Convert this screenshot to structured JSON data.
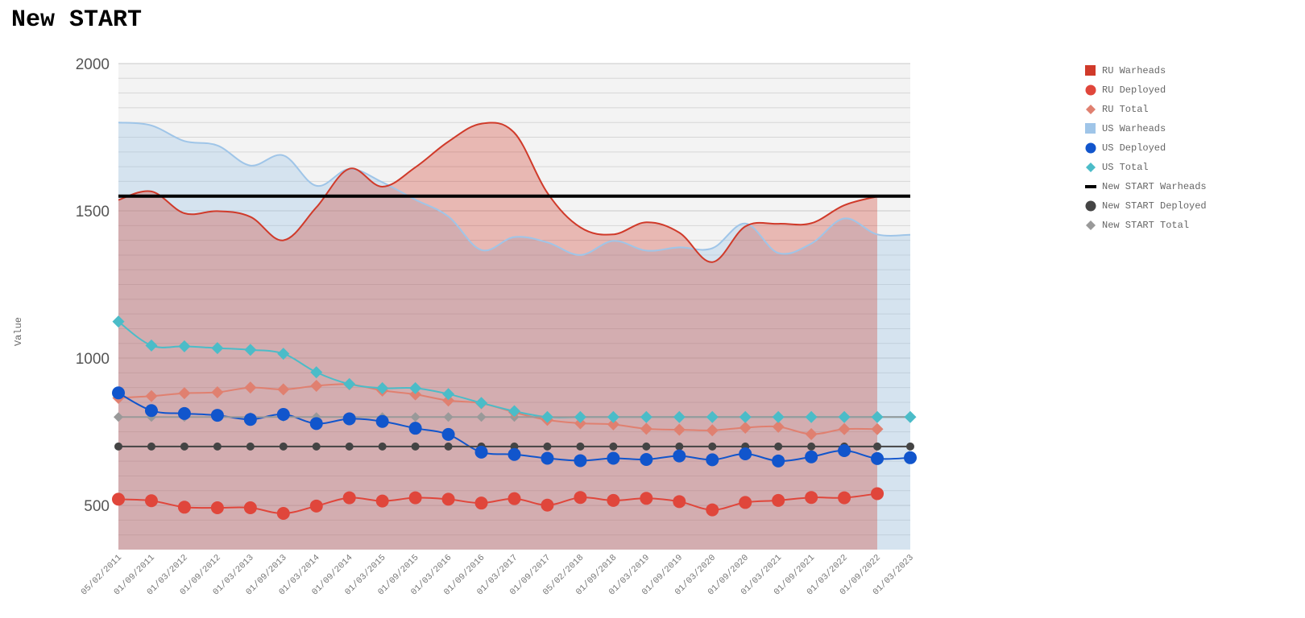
{
  "chart_data": {
    "type": "line",
    "title": "New START",
    "ylabel": "Value",
    "xlabel": "",
    "ylim": [
      350,
      2000
    ],
    "yticks": [
      500,
      1000,
      1500,
      2000
    ],
    "grid": true,
    "legend_position": "top-right",
    "categories": [
      "05/02/2011",
      "01/09/2011",
      "01/03/2012",
      "01/09/2012",
      "01/03/2013",
      "01/09/2013",
      "01/03/2014",
      "01/09/2014",
      "01/03/2015",
      "01/09/2015",
      "01/03/2016",
      "01/09/2016",
      "01/03/2017",
      "01/09/2017",
      "05/02/2018",
      "01/09/2018",
      "01/03/2019",
      "01/09/2019",
      "01/03/2020",
      "01/09/2020",
      "01/03/2021",
      "01/09/2021",
      "01/03/2022",
      "01/09/2022",
      "01/03/2023"
    ],
    "series": [
      {
        "name": "RU Warheads",
        "kind": "area",
        "color": "#d03a2a",
        "values": [
          1537,
          1566,
          1492,
          1499,
          1480,
          1400,
          1512,
          1643,
          1582,
          1648,
          1735,
          1796,
          1765,
          1561,
          1444,
          1420,
          1461,
          1426,
          1326,
          1447,
          1456,
          1458,
          1519,
          1549,
          null
        ]
      },
      {
        "name": "RU Deployed",
        "kind": "circle",
        "color": "#e0463b",
        "values": [
          521,
          516,
          494,
          492,
          492,
          473,
          498,
          526,
          515,
          526,
          521,
          508,
          523,
          501,
          527,
          517,
          524,
          513,
          485,
          510,
          517,
          527,
          526,
          540,
          null
        ]
      },
      {
        "name": "RU Total",
        "kind": "diamond",
        "color": "#e08070",
        "values": [
          865,
          871,
          881,
          884,
          900,
          894,
          906,
          911,
          890,
          877,
          856,
          847,
          816,
          790,
          779,
          775,
          760,
          757,
          755,
          764,
          767,
          742,
          759,
          759,
          null
        ]
      },
      {
        "name": "US Warheads",
        "kind": "area",
        "color": "#9fc5e8",
        "values": [
          1800,
          1790,
          1737,
          1722,
          1654,
          1688,
          1585,
          1642,
          1597,
          1538,
          1481,
          1367,
          1411,
          1393,
          1350,
          1398,
          1365,
          1376,
          1373,
          1457,
          1357,
          1389,
          1474,
          1420,
          1419
        ]
      },
      {
        "name": "US Deployed",
        "kind": "circle",
        "color": "#1155cc",
        "values": [
          882,
          822,
          812,
          806,
          792,
          809,
          778,
          794,
          785,
          762,
          741,
          681,
          673,
          660,
          652,
          660,
          656,
          668,
          655,
          675,
          651,
          665,
          686,
          659,
          662
        ]
      },
      {
        "name": "US Total",
        "kind": "diamond",
        "color": "#4bbcc8",
        "values": [
          1124,
          1043,
          1040,
          1034,
          1028,
          1015,
          952,
          912,
          898,
          898,
          878,
          848,
          820,
          800,
          800,
          800,
          800,
          800,
          800,
          800,
          800,
          800,
          800,
          800,
          800
        ]
      },
      {
        "name": "New START Warheads",
        "kind": "line",
        "color": "#000000",
        "values": [
          1550,
          1550,
          1550,
          1550,
          1550,
          1550,
          1550,
          1550,
          1550,
          1550,
          1550,
          1550,
          1550,
          1550,
          1550,
          1550,
          1550,
          1550,
          1550,
          1550,
          1550,
          1550,
          1550,
          1550,
          1550
        ]
      },
      {
        "name": "New START Deployed",
        "kind": "circle",
        "color": "#444444",
        "values": [
          700,
          700,
          700,
          700,
          700,
          700,
          700,
          700,
          700,
          700,
          700,
          700,
          700,
          700,
          700,
          700,
          700,
          700,
          700,
          700,
          700,
          700,
          700,
          700,
          700
        ]
      },
      {
        "name": "New START Total",
        "kind": "diamond",
        "color": "#999999",
        "values": [
          800,
          800,
          800,
          800,
          800,
          800,
          800,
          800,
          800,
          800,
          800,
          800,
          800,
          800,
          800,
          800,
          800,
          800,
          800,
          800,
          800,
          800,
          800,
          800,
          800
        ]
      }
    ]
  }
}
